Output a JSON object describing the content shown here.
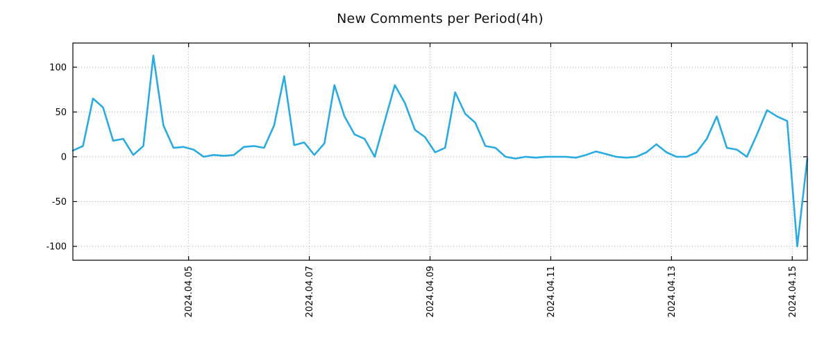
{
  "chart_data": {
    "type": "line",
    "title": "New Comments per Period(4h)",
    "period": "4h",
    "x_axis": {
      "tick_labels": [
        "2024.04.05",
        "2024.04.07",
        "2024.04.09",
        "2024.04.11",
        "2024.04.13",
        "2024.04.15"
      ],
      "tick_positions": [
        11.5,
        23.5,
        35.5,
        47.5,
        59.5,
        71.5
      ],
      "label_rotation_deg": 90
    },
    "y_axis": {
      "tick_labels": [
        "-100",
        "-50",
        "0",
        "50",
        "100"
      ],
      "tick_values": [
        -100,
        -50,
        0,
        50,
        100
      ],
      "range": [
        -115.5,
        127
      ]
    },
    "x_range": [
      0,
      73
    ],
    "grid": {
      "style": "dotted",
      "color": "#aaaaaa",
      "on": true
    },
    "border_color": "#000000",
    "series": [
      {
        "name": "new-comments",
        "color": "#29abe2",
        "values": [
          7,
          12,
          65,
          55,
          18,
          20,
          2,
          12,
          113,
          35,
          10,
          11,
          8,
          0,
          2,
          1,
          2,
          11,
          12,
          10,
          35,
          90,
          13,
          16,
          2,
          15,
          80,
          45,
          25,
          20,
          0,
          40,
          80,
          60,
          30,
          22,
          5,
          10,
          72,
          48,
          38,
          12,
          10,
          0,
          -2,
          0,
          -1,
          0,
          0,
          0,
          -1,
          2,
          6,
          3,
          0,
          -1,
          0,
          5,
          14,
          5,
          0,
          0,
          5,
          20,
          45,
          10,
          8,
          0,
          25,
          52,
          45,
          40,
          -100,
          -2
        ]
      }
    ]
  }
}
